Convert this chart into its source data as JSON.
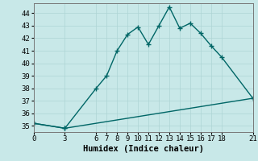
{
  "xlabel": "Humidex (Indice chaleur)",
  "background_color": "#c8e8e8",
  "line_color": "#006666",
  "series1_x": [
    0,
    3,
    6,
    7,
    8,
    9,
    10,
    11,
    12,
    13,
    14,
    15,
    16,
    17,
    18,
    21
  ],
  "series1_y": [
    35.2,
    34.8,
    38.0,
    39.0,
    41.0,
    42.3,
    42.9,
    41.5,
    43.0,
    44.5,
    42.8,
    43.2,
    42.4,
    41.4,
    40.5,
    37.2
  ],
  "series2_x": [
    0,
    3,
    21
  ],
  "series2_y": [
    35.2,
    34.8,
    37.2
  ],
  "ylim": [
    34.5,
    44.8
  ],
  "xlim": [
    0,
    21
  ],
  "yticks": [
    35,
    36,
    37,
    38,
    39,
    40,
    41,
    42,
    43,
    44
  ],
  "xticks": [
    0,
    3,
    6,
    7,
    8,
    9,
    10,
    11,
    12,
    13,
    14,
    15,
    16,
    17,
    18,
    21
  ],
  "grid_color": "#aed4d4",
  "marker": "+",
  "markersize": 4,
  "linewidth": 1.0,
  "font_family": "monospace",
  "xlabel_fontsize": 7.5,
  "tick_fontsize": 6.5
}
